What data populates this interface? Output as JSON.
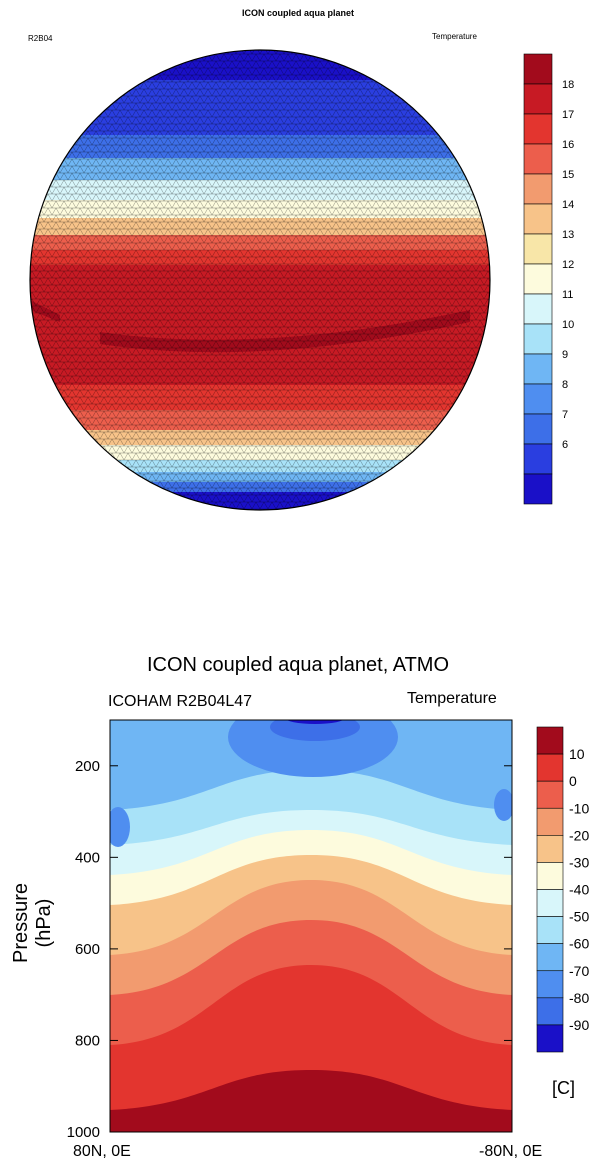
{
  "chart_data": [
    {
      "type": "heatmap",
      "title": "ICON coupled aqua planet",
      "left_label": "R2B04",
      "right_label": "Temperature",
      "projection": "orthographic globe with triangular grid",
      "colorbar": {
        "levels": [
          6,
          7,
          8,
          9,
          10,
          11,
          12,
          13,
          14,
          15,
          16,
          17,
          18
        ],
        "colors": [
          "#1a10c8",
          "#2a3ee0",
          "#3d6fe8",
          "#4f8ef0",
          "#6fb6f4",
          "#a8e2f8",
          "#d8f6fa",
          "#fdfbdd",
          "#f8e6a8",
          "#f7c389",
          "#f29b6f",
          "#ec5e4c",
          "#e3352f",
          "#c71a24",
          "#a20b1c"
        ]
      }
    },
    {
      "type": "heatmap",
      "title": "ICON coupled aqua planet, ATMO",
      "left_label": "ICOHAM R2B04L47",
      "right_label": "Temperature",
      "ylabel": "Pressure (hPa)",
      "y_ticks": [
        200,
        400,
        600,
        800,
        1000
      ],
      "ylim": [
        1000,
        100
      ],
      "x_ticks": [
        "80N, 0E",
        "-80N, 0E"
      ],
      "unit": "[C]",
      "colorbar": {
        "levels": [
          10,
          0,
          -10,
          -20,
          -30,
          -40,
          -50,
          -60,
          -70,
          -80,
          -90
        ],
        "colors": [
          "#a20b1c",
          "#e3352f",
          "#ec5e4c",
          "#f29b6f",
          "#f7c389",
          "#fdfbdd",
          "#d8f6fa",
          "#a8e2f8",
          "#6fb6f4",
          "#4f8ef0",
          "#3d6fe8",
          "#1a10c8"
        ]
      }
    }
  ]
}
